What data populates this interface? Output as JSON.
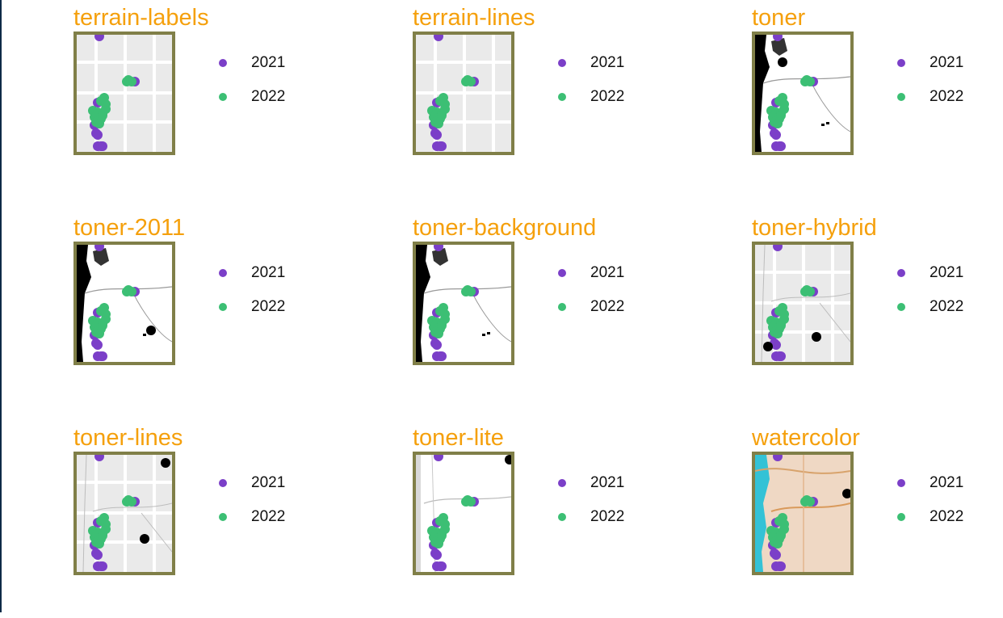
{
  "colors": {
    "title": "#f5a00c",
    "frame": "#807f48",
    "series_2021": "#7b3fc8",
    "series_2022": "#3cbf74",
    "extra_point": "#000000"
  },
  "legend": [
    {
      "label": "2021",
      "color": "#7b3fc8"
    },
    {
      "label": "2022",
      "color": "#3cbf74"
    }
  ],
  "chart_data": [
    {
      "type": "scatter",
      "title": "terrain-labels",
      "basemap": "terrain-labels"
    },
    {
      "type": "scatter",
      "title": "terrain-lines",
      "basemap": "terrain-lines"
    },
    {
      "type": "scatter",
      "title": "toner",
      "basemap": "toner"
    },
    {
      "type": "scatter",
      "title": "toner-2011",
      "basemap": "toner-2011"
    },
    {
      "type": "scatter",
      "title": "toner-background",
      "basemap": "toner-background"
    },
    {
      "type": "scatter",
      "title": "toner-hybrid",
      "basemap": "toner-hybrid"
    },
    {
      "type": "scatter",
      "title": "toner-lines",
      "basemap": "toner-lines"
    },
    {
      "type": "scatter",
      "title": "toner-lite",
      "basemap": "toner-lite"
    },
    {
      "type": "scatter",
      "title": "watercolor",
      "basemap": "watercolor"
    }
  ]
}
